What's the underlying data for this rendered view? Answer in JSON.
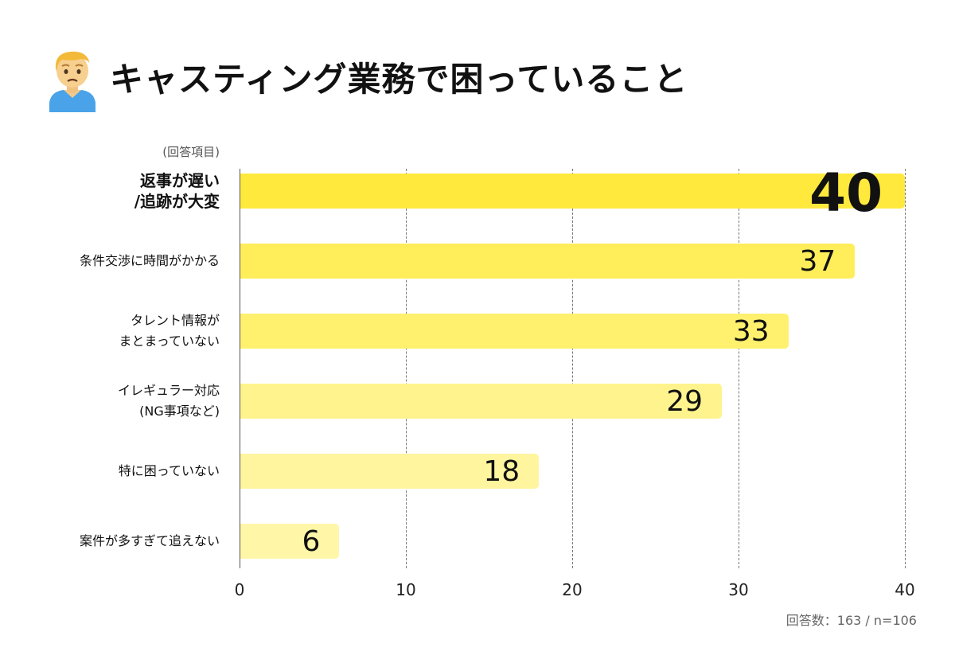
{
  "header": {
    "title": "キャスティング業務で困っていること",
    "icon": "person-frowning-icon"
  },
  "chart_data": {
    "type": "bar",
    "orientation": "horizontal",
    "title": "キャスティング業務で困っていること",
    "category_header": "(回答項目)",
    "categories": [
      "返事が遅い\n/追跡が大変",
      "条件交渉に時間がかかる",
      "タレント情報が\nまとまっていない",
      "イレギュラー対応\n(NG事項など)",
      "特に困っていない",
      "案件が多すぎて追えない"
    ],
    "values": [
      40,
      37,
      33,
      29,
      18,
      6
    ],
    "value_labels": [
      "40",
      "37",
      "33",
      "29",
      "18",
      "6"
    ],
    "bar_colors": [
      "#ffe93d",
      "#ffed5a",
      "#fff06e",
      "#fff38d",
      "#fff59e",
      "#fff6a8"
    ],
    "xlim": [
      0,
      40
    ],
    "x_ticks": [
      0,
      10,
      20,
      30,
      40
    ],
    "x_tick_labels": [
      "0",
      "10",
      "20",
      "30",
      "40"
    ],
    "grid": true,
    "xlabel": "",
    "ylabel": "",
    "footnote": "回答数：163 / n=106"
  }
}
